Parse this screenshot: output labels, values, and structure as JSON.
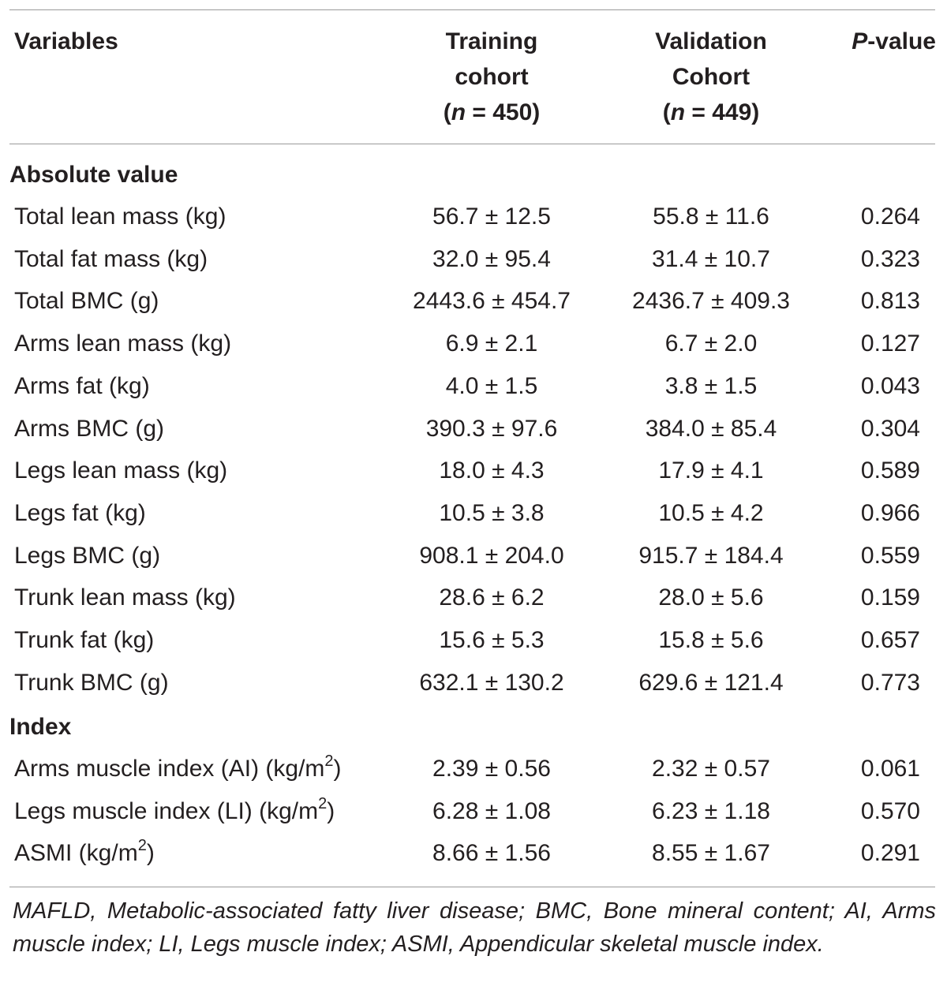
{
  "header": {
    "variables": "Variables",
    "training": [
      "Training",
      "cohort"
    ],
    "training_n": [
      "(",
      "n",
      " = 450)"
    ],
    "validation": [
      "Validation",
      "Cohort"
    ],
    "validation_n": [
      "(",
      "n",
      " = 449)"
    ],
    "pvalue_italic": "P",
    "pvalue_rest": "-value"
  },
  "sections": {
    "absolute": "Absolute value",
    "index": "Index"
  },
  "absolute_rows": [
    {
      "variable": "Total lean mass (kg)",
      "training": "56.7 ± 12.5",
      "validation": "55.8 ± 11.6",
      "p": "0.264"
    },
    {
      "variable": "Total fat mass (kg)",
      "training": "32.0 ± 95.4",
      "validation": "31.4 ± 10.7",
      "p": "0.323"
    },
    {
      "variable": "Total BMC (g)",
      "training": "2443.6 ± 454.7",
      "validation": "2436.7 ± 409.3",
      "p": "0.813"
    },
    {
      "variable": "Arms lean mass (kg)",
      "training": "6.9 ± 2.1",
      "validation": "6.7 ± 2.0",
      "p": "0.127"
    },
    {
      "variable": "Arms fat (kg)",
      "training": "4.0 ± 1.5",
      "validation": "3.8 ± 1.5",
      "p": "0.043"
    },
    {
      "variable": "Arms BMC (g)",
      "training": "390.3 ± 97.6",
      "validation": "384.0 ± 85.4",
      "p": "0.304"
    },
    {
      "variable": "Legs lean mass (kg)",
      "training": "18.0 ± 4.3",
      "validation": "17.9 ± 4.1",
      "p": "0.589"
    },
    {
      "variable": "Legs fat (kg)",
      "training": "10.5 ± 3.8",
      "validation": "10.5 ± 4.2",
      "p": "0.966"
    },
    {
      "variable": "Legs BMC (g)",
      "training": "908.1 ± 204.0",
      "validation": "915.7 ± 184.4",
      "p": "0.559"
    },
    {
      "variable": "Trunk lean mass (kg)",
      "training": "28.6 ± 6.2",
      "validation": "28.0 ± 5.6",
      "p": "0.159"
    },
    {
      "variable": "Trunk fat (kg)",
      "training": "15.6 ± 5.3",
      "validation": "15.8 ± 5.6",
      "p": "0.657"
    },
    {
      "variable": "Trunk BMC (g)",
      "training": "632.1 ± 130.2",
      "validation": "629.6 ± 121.4",
      "p": "0.773"
    }
  ],
  "index_rows": [
    {
      "variable_pre": "Arms muscle index (AI) (kg/m",
      "sup": "2",
      "variable_post": ")",
      "training": "2.39 ± 0.56",
      "validation": "2.32 ± 0.57",
      "p": "0.061"
    },
    {
      "variable_pre": "Legs muscle index (LI) (kg/m",
      "sup": "2",
      "variable_post": ")",
      "training": "6.28 ± 1.08",
      "validation": "6.23 ± 1.18",
      "p": "0.570"
    },
    {
      "variable_pre": "ASMI (kg/m",
      "sup": "2",
      "variable_post": ")",
      "training": "8.66 ± 1.56",
      "validation": "8.55 ± 1.67",
      "p": "0.291"
    }
  ],
  "footnote": "MAFLD, Metabolic-associated fatty liver disease; BMC, Bone mineral content; AI, Arms muscle index; LI, Legs muscle index; ASMI, Appendicular skeletal muscle index."
}
